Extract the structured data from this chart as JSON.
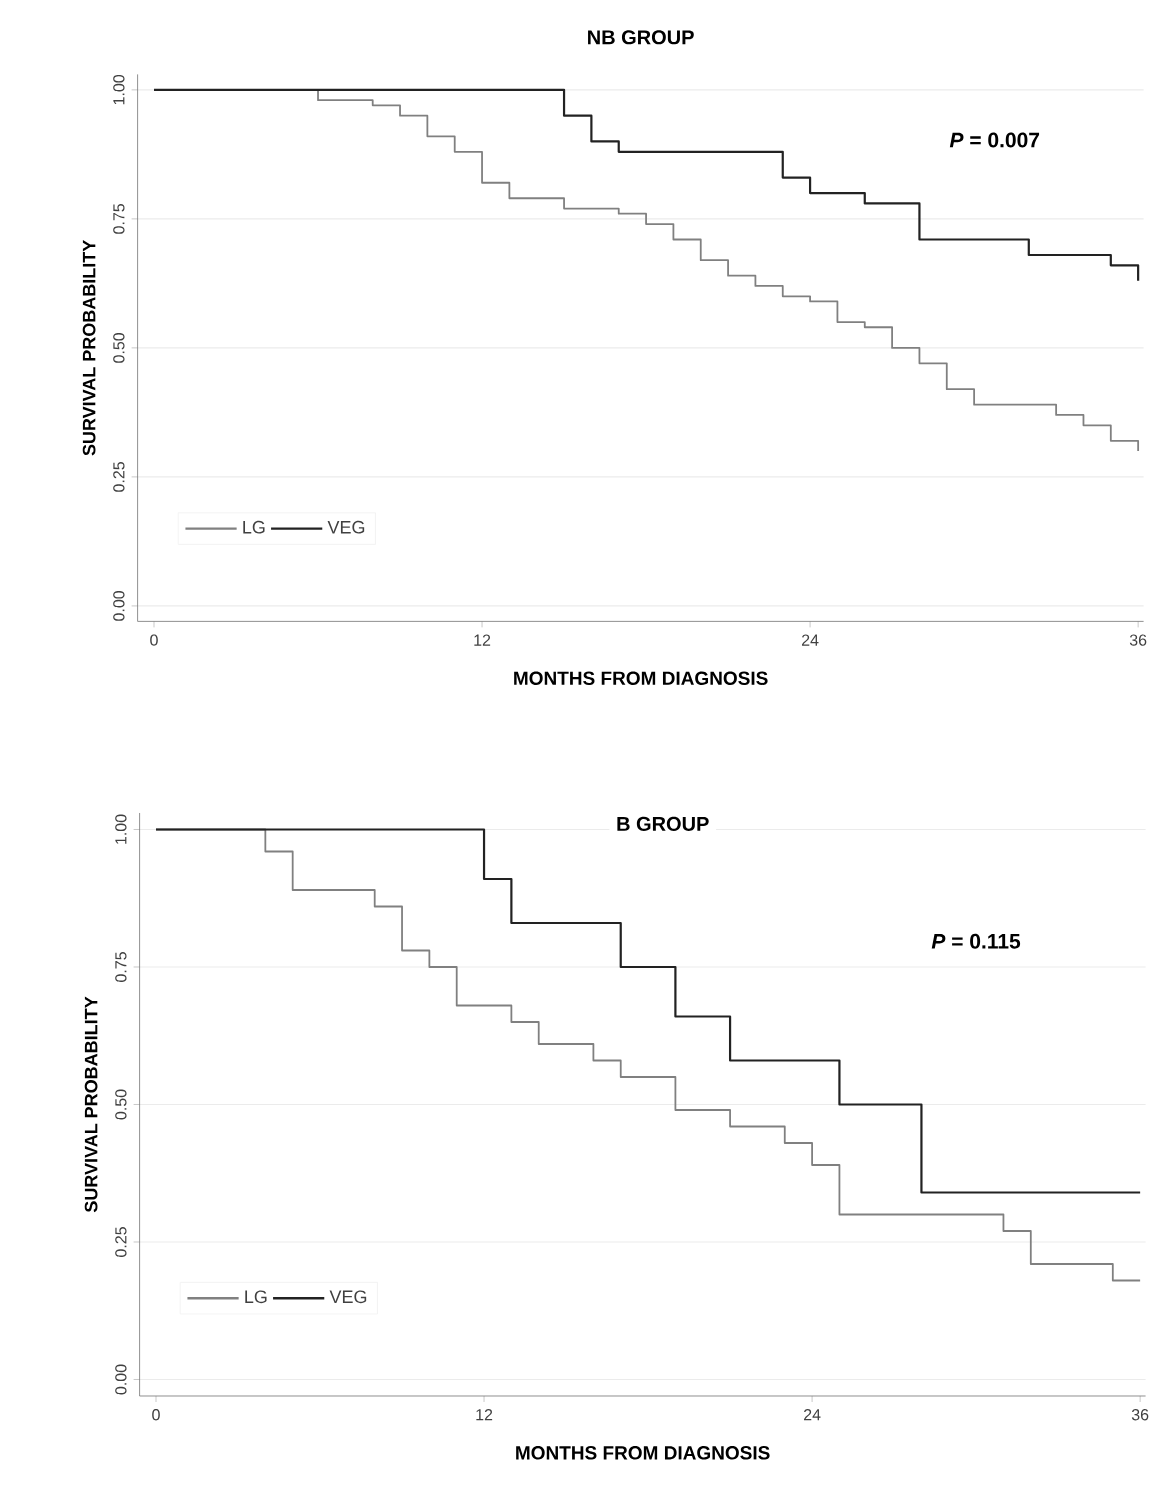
{
  "chart_data": [
    {
      "type": "step",
      "title": "NB  GROUP",
      "xlabel": "MONTHS FROM DIAGNOSIS",
      "ylabel": "SURVIVAL PROBABILITY",
      "annotations": [
        "*P* = 0.007"
      ],
      "xlim": [
        -0.6,
        36.2
      ],
      "ylim": [
        -0.03,
        1.03
      ],
      "xticks": [
        0,
        12,
        24,
        36
      ],
      "yticks": [
        {
          "value": 0,
          "label": "0.00"
        },
        {
          "value": 0.25,
          "label": "0.25"
        },
        {
          "value": 0.5,
          "label": "0.50"
        },
        {
          "value": 0.75,
          "label": "0.75"
        },
        {
          "value": 1,
          "label": "1.00"
        }
      ],
      "grid": "y",
      "legend": "bottom left",
      "series": [
        {
          "name": "LG",
          "color": "#808080",
          "x": [
            0,
            6,
            8,
            9,
            10,
            11,
            12,
            13,
            15,
            17,
            18,
            19,
            20,
            21,
            22,
            23,
            24,
            25,
            26,
            27,
            28,
            29,
            30,
            33,
            34,
            35,
            36
          ],
          "values": [
            1,
            0.98,
            0.97,
            0.95,
            0.91,
            0.88,
            0.82,
            0.79,
            0.77,
            0.76,
            0.74,
            0.71,
            0.67,
            0.64,
            0.62,
            0.6,
            0.59,
            0.55,
            0.54,
            0.5,
            0.47,
            0.42,
            0.39,
            0.37,
            0.35,
            0.32,
            0.3
          ]
        },
        {
          "name": "VEG",
          "color": "#222222",
          "x": [
            0,
            15,
            16,
            17,
            23,
            24,
            26,
            28,
            32,
            35,
            36
          ],
          "values": [
            1,
            0.95,
            0.9,
            0.88,
            0.83,
            0.8,
            0.78,
            0.71,
            0.68,
            0.66,
            0.63
          ]
        }
      ]
    },
    {
      "type": "step",
      "title": "B  GROUP",
      "xlabel": "MONTHS FROM DIAGNOSIS",
      "ylabel": "SURVIVAL PROBABILITY",
      "annotations": [
        "*P* = 0.115"
      ],
      "xlim": [
        -0.6,
        36.2
      ],
      "ylim": [
        -0.03,
        1.03
      ],
      "xticks": [
        0,
        12,
        24,
        36
      ],
      "yticks": [
        {
          "value": 0,
          "label": "0.00"
        },
        {
          "value": 0.25,
          "label": "0.25"
        },
        {
          "value": 0.5,
          "label": "0.50"
        },
        {
          "value": 0.75,
          "label": "0.75"
        },
        {
          "value": 1,
          "label": "1.00"
        }
      ],
      "grid": "y",
      "legend": "bottom left",
      "series": [
        {
          "name": "LG",
          "color": "#808080",
          "x": [
            0,
            4,
            5,
            8,
            9,
            10,
            11,
            13,
            14,
            16,
            17,
            19,
            21,
            23,
            24,
            25,
            31,
            32,
            35,
            36
          ],
          "values": [
            1,
            0.96,
            0.89,
            0.86,
            0.78,
            0.75,
            0.68,
            0.65,
            0.61,
            0.58,
            0.55,
            0.49,
            0.46,
            0.43,
            0.39,
            0.3,
            0.27,
            0.21,
            0.18,
            0.18
          ]
        },
        {
          "name": "VEG",
          "color": "#222222",
          "x": [
            0,
            12,
            13,
            17,
            19,
            21,
            25,
            28,
            36
          ],
          "values": [
            1,
            0.91,
            0.83,
            0.75,
            0.66,
            0.58,
            0.5,
            0.34,
            0.34
          ]
        }
      ]
    }
  ]
}
